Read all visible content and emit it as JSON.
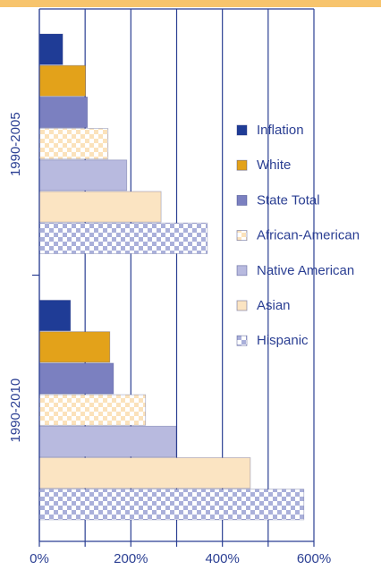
{
  "chart_data": {
    "type": "bar",
    "orientation": "horizontal",
    "categories": [
      "1990-2005",
      "1990-2010"
    ],
    "series": [
      {
        "name": "Inflation",
        "color": "#1f3c96",
        "values": [
          51,
          68
        ]
      },
      {
        "name": "White",
        "color": "#e3a21a",
        "values": [
          101,
          154
        ]
      },
      {
        "name": "State Total",
        "color": "#7b80c0",
        "values": [
          105,
          162
        ]
      },
      {
        "name": "African-American",
        "color": "#fbe2bb",
        "pattern": "checker",
        "values": [
          150,
          232
        ]
      },
      {
        "name": "Native American",
        "color": "#b8badf",
        "values": [
          191,
          299
        ]
      },
      {
        "name": "Asian",
        "color": "#fbe4c2",
        "values": [
          266,
          461
        ]
      },
      {
        "name": "Hispanic",
        "color": "#aab0da",
        "pattern": "checker",
        "values": [
          367,
          578
        ]
      }
    ],
    "xlim": [
      0,
      600
    ],
    "xticks": [
      {
        "value": 0,
        "label": "0%"
      },
      {
        "value": 200,
        "label": "200%"
      },
      {
        "value": 400,
        "label": "400%"
      },
      {
        "value": 600,
        "label": "600%"
      }
    ],
    "xminor": [
      100,
      300,
      500
    ],
    "grid": true,
    "legend": "right"
  }
}
